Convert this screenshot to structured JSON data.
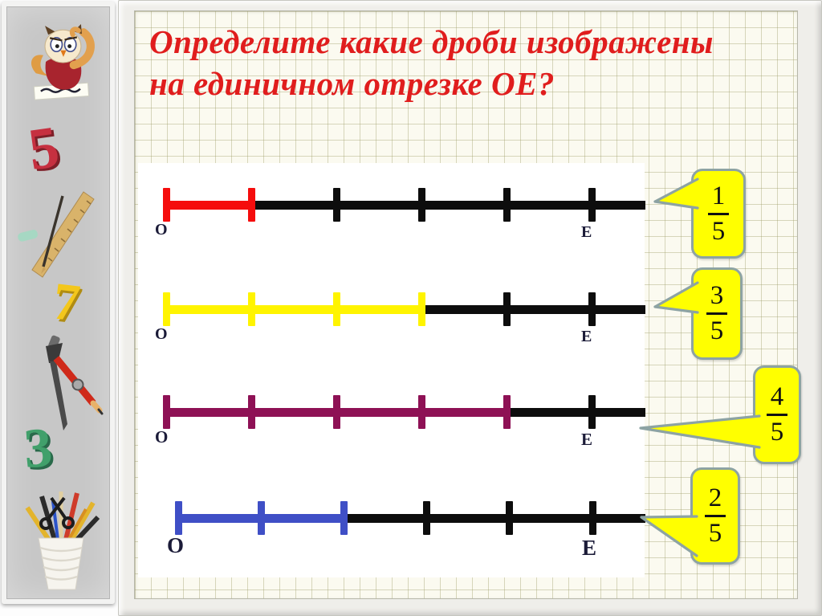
{
  "slide": {
    "title_line1": "Определите какие дроби изображены",
    "title_line2": "на единичном отрезке ОЕ?",
    "title_color": "#e01d1d"
  },
  "colors": {
    "line_black": "#0d0d0d",
    "segment_label": "#1b1b38",
    "paper": "#fbfaf0",
    "panel": "#ffffff"
  },
  "callout_style": {
    "fill": "#ffff00",
    "border": "#8da3a3",
    "text": "#111111"
  },
  "number_lines": [
    {
      "origin_label": "О",
      "end_label": "Е",
      "total_parts": 5,
      "shaded_parts": 1,
      "shade_color": "#f50d0d",
      "fraction": {
        "numerator": "1",
        "denominator": "5"
      }
    },
    {
      "origin_label": "О",
      "end_label": "Е",
      "total_parts": 5,
      "shaded_parts": 3,
      "shade_color": "#fff400",
      "fraction": {
        "numerator": "3",
        "denominator": "5"
      }
    },
    {
      "origin_label": "О",
      "end_label": "Е",
      "total_parts": 5,
      "shaded_parts": 4,
      "shade_color": "#8e1155",
      "fraction": {
        "numerator": "4",
        "denominator": "5"
      }
    },
    {
      "origin_label": "О",
      "end_label": "Е",
      "total_parts": 5,
      "shaded_parts": 2,
      "shade_color": "#3f4fc6",
      "fraction": {
        "numerator": "2",
        "denominator": "5"
      }
    }
  ],
  "sidebar": {
    "decorations": [
      "owl-mascot",
      "digit-5",
      "ruler-and-pencil",
      "digit-7",
      "drafting-compass",
      "digit-3",
      "pencil-cup"
    ],
    "digits": [
      {
        "label": "5",
        "color": "#c63040",
        "shadow": "#7e1f28"
      },
      {
        "label": "7",
        "color": "#f3c71c",
        "shadow": "#b08c12"
      },
      {
        "label": "3",
        "color": "#41a06b",
        "shadow": "#29694a"
      }
    ]
  }
}
